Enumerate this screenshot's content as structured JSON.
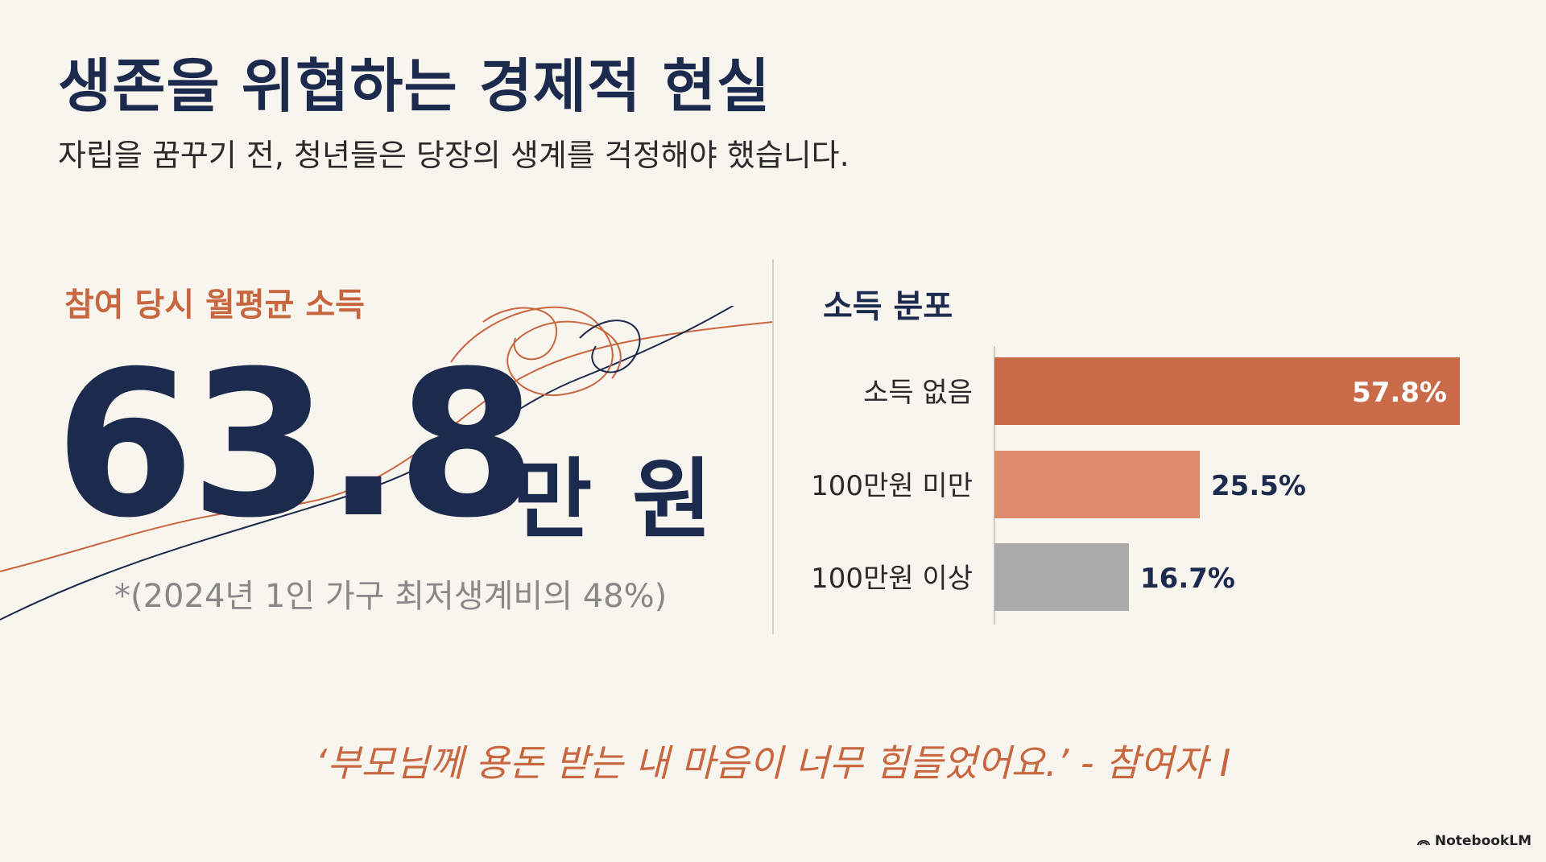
{
  "slide": {
    "title": "생존을 위협하는 경제적 현실",
    "subtitle": "자립을 꿈꾸기 전, 청년들은 당장의 생계를 걱정해야 했습니다.",
    "left_panel": {
      "label": "참여 당시 월평균 소득",
      "big_number": "63.8",
      "big_unit": "만 원",
      "footnote": "*(2024년 1인 가구 최저생계비의 48%)"
    },
    "quote": "‘부모님께 용돈 받는 내 마음이 너무 힘들었어요.’ - 참여자 I",
    "brand": "NotebookLM"
  },
  "colors": {
    "navy": "#1c2b4d",
    "accent": "#c8673f",
    "bar_no_income": "#c96a48",
    "bar_under_100": "#de8a6d",
    "bar_over_100": "#ababab",
    "background": "#f8f4ee"
  },
  "chart_data": {
    "type": "bar",
    "orientation": "horizontal",
    "title": "소득 분포",
    "categories": [
      "소득 없음",
      "100만원 미만",
      "100만원 이상"
    ],
    "values": [
      57.8,
      25.5,
      16.7
    ],
    "value_labels": [
      "57.8%",
      "25.5%",
      "16.7%"
    ],
    "unit": "%",
    "xlim": [
      0,
      57.8
    ],
    "grid": false,
    "legend": "none"
  }
}
